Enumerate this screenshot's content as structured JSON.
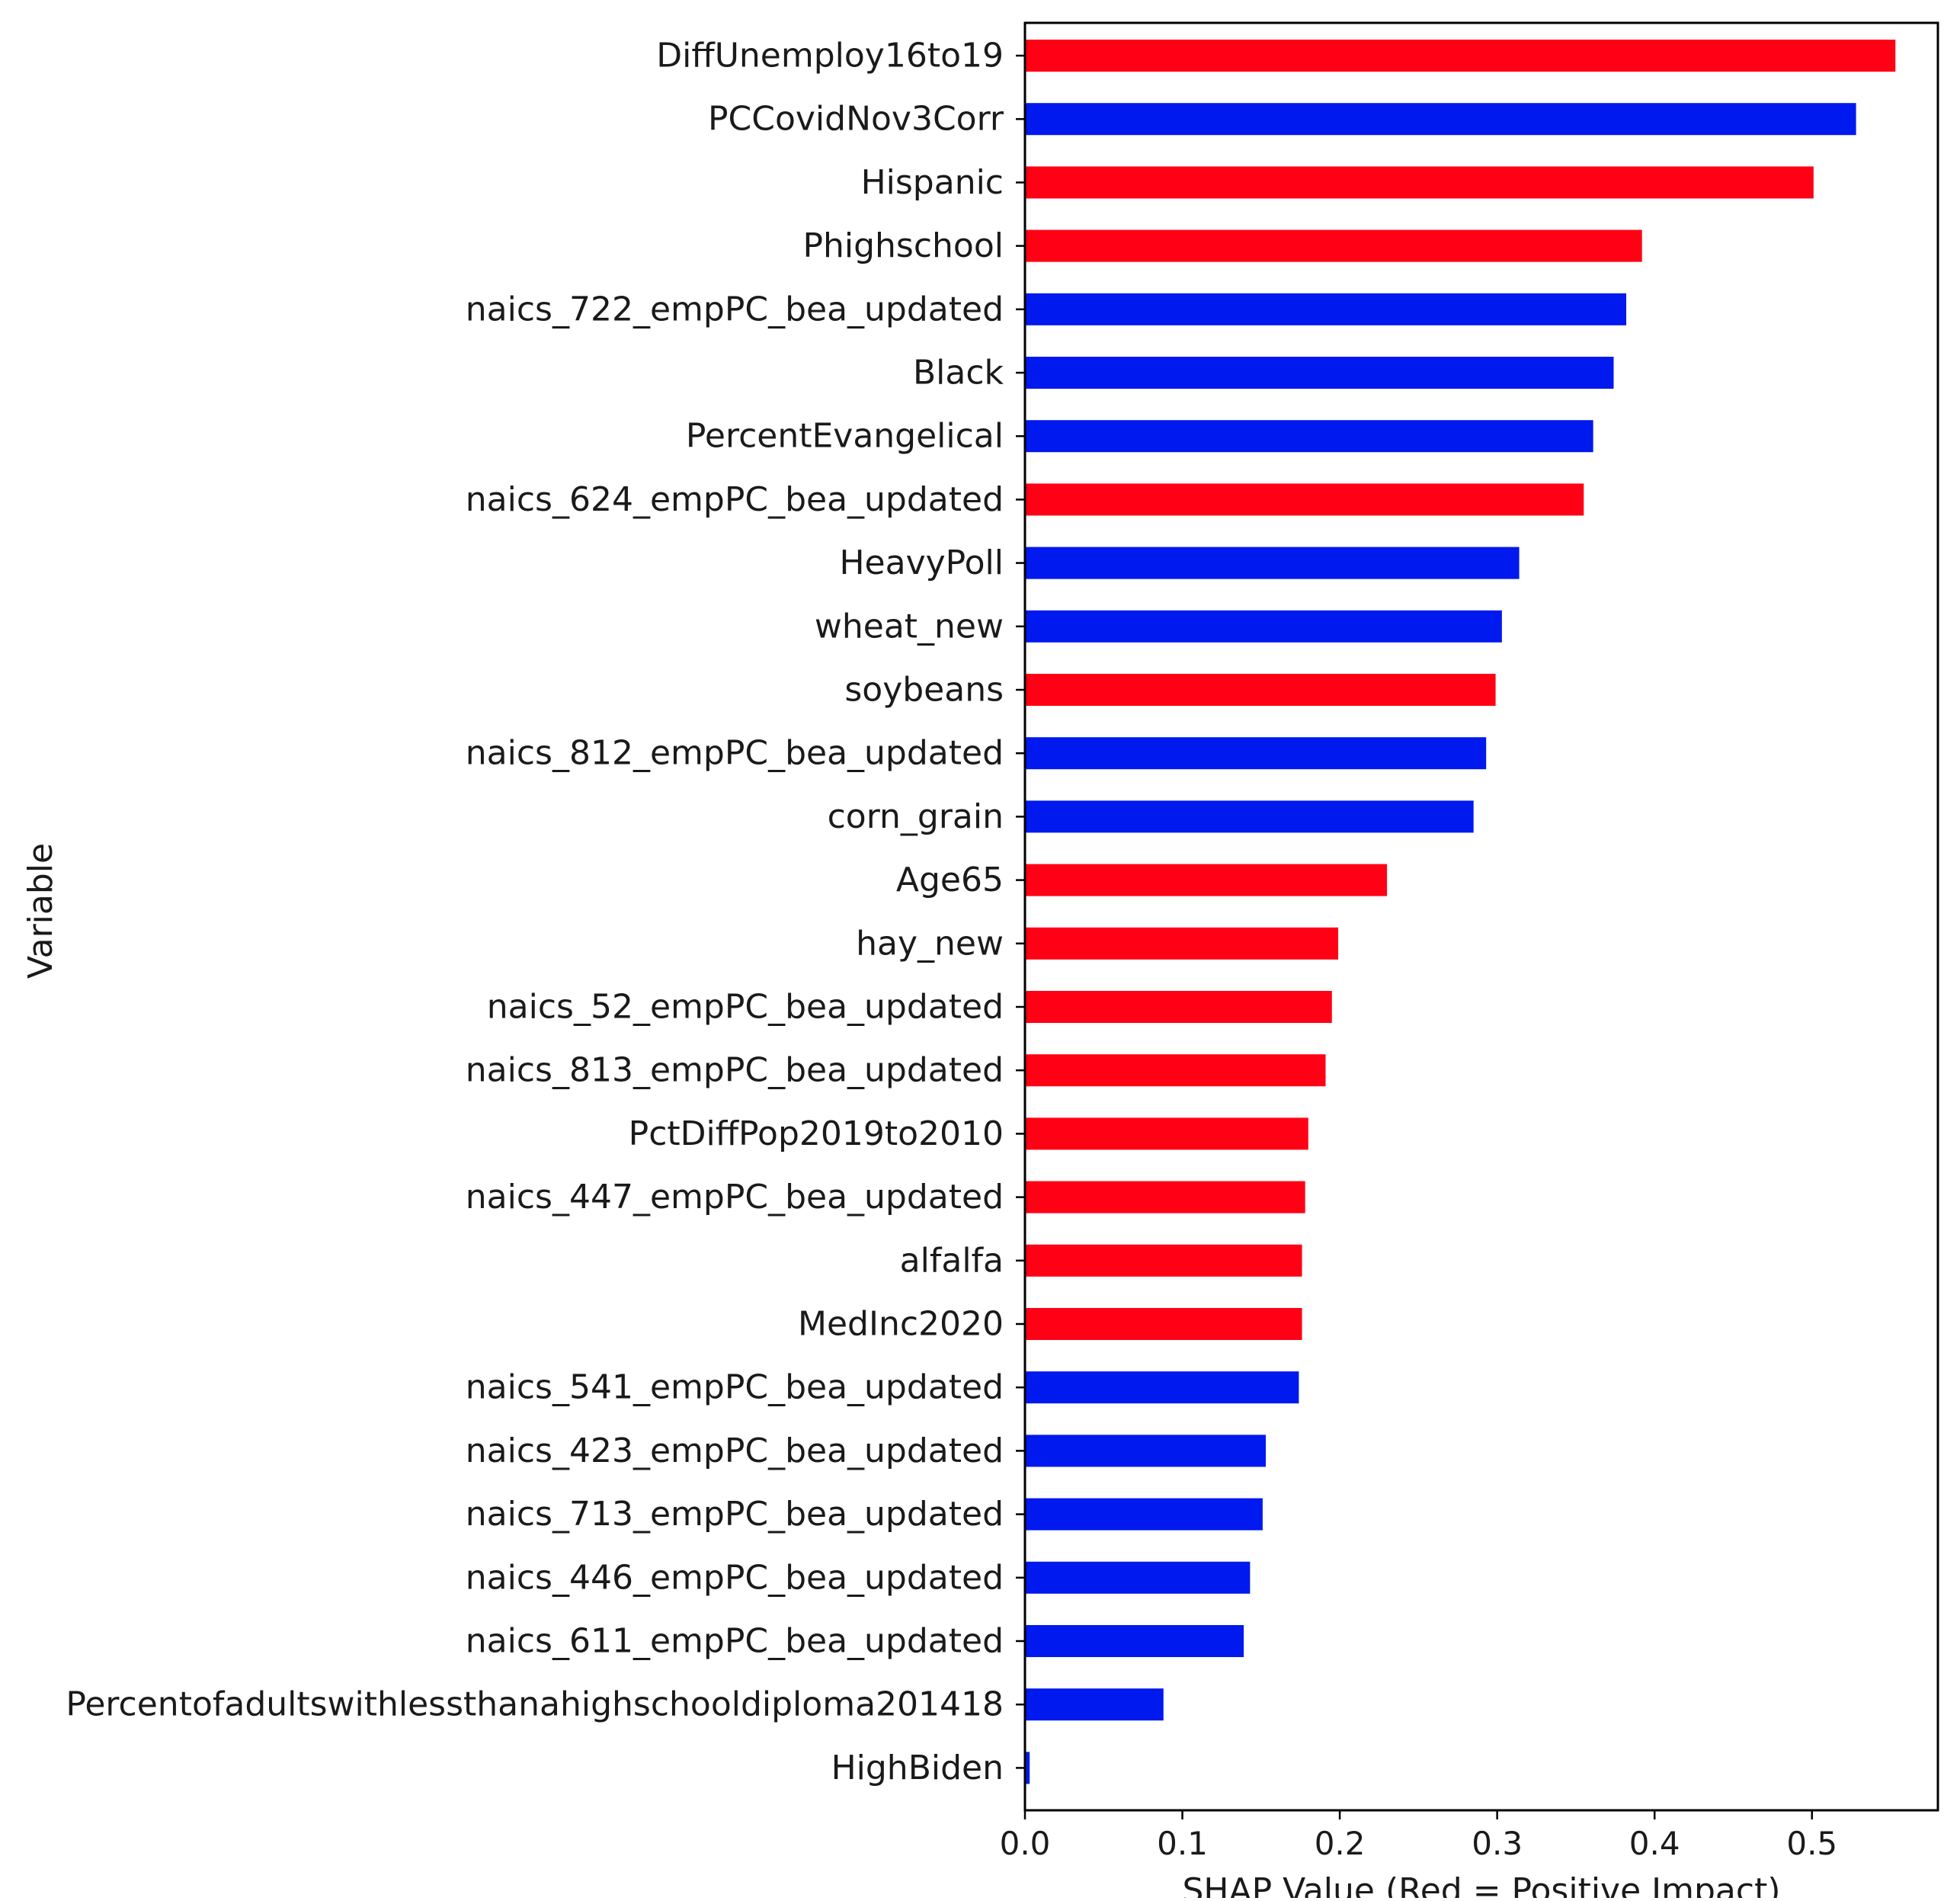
{
  "chart_data": {
    "type": "bar",
    "orientation": "horizontal",
    "xlabel": "SHAP Value (Red = Positive Impact)",
    "ylabel": "Variable",
    "xlim": [
      0,
      0.58
    ],
    "xticks": [
      "0.0",
      "0.1",
      "0.2",
      "0.3",
      "0.4",
      "0.5"
    ],
    "grid": false,
    "legend": "none",
    "colors": {
      "positive": "#ff0015",
      "negative": "#0019ee"
    },
    "bars": [
      {
        "label": "DiffUnemploy16to19",
        "value": 0.553,
        "sign": "positive"
      },
      {
        "label": "PCCovidNov3Corr",
        "value": 0.528,
        "sign": "negative"
      },
      {
        "label": "Hispanic",
        "value": 0.501,
        "sign": "positive"
      },
      {
        "label": "Phighschool",
        "value": 0.392,
        "sign": "positive"
      },
      {
        "label": "naics_722_empPC_bea_updated",
        "value": 0.382,
        "sign": "negative"
      },
      {
        "label": "Black",
        "value": 0.374,
        "sign": "negative"
      },
      {
        "label": "PercentEvangelical",
        "value": 0.361,
        "sign": "negative"
      },
      {
        "label": "naics_624_empPC_bea_updated",
        "value": 0.355,
        "sign": "positive"
      },
      {
        "label": "HeavyPoll",
        "value": 0.314,
        "sign": "negative"
      },
      {
        "label": "wheat_new",
        "value": 0.303,
        "sign": "negative"
      },
      {
        "label": "soybeans",
        "value": 0.299,
        "sign": "positive"
      },
      {
        "label": "naics_812_empPC_bea_updated",
        "value": 0.293,
        "sign": "negative"
      },
      {
        "label": "corn_grain",
        "value": 0.285,
        "sign": "negative"
      },
      {
        "label": "Age65",
        "value": 0.23,
        "sign": "positive"
      },
      {
        "label": "hay_new",
        "value": 0.199,
        "sign": "positive"
      },
      {
        "label": "naics_52_empPC_bea_updated",
        "value": 0.195,
        "sign": "positive"
      },
      {
        "label": "naics_813_empPC_bea_updated",
        "value": 0.191,
        "sign": "positive"
      },
      {
        "label": "PctDiffPop2019to2010",
        "value": 0.18,
        "sign": "positive"
      },
      {
        "label": "naics_447_empPC_bea_updated",
        "value": 0.178,
        "sign": "positive"
      },
      {
        "label": "alfalfa",
        "value": 0.176,
        "sign": "positive"
      },
      {
        "label": "MedInc2020",
        "value": 0.176,
        "sign": "positive"
      },
      {
        "label": "naics_541_empPC_bea_updated",
        "value": 0.174,
        "sign": "negative"
      },
      {
        "label": "naics_423_empPC_bea_updated",
        "value": 0.153,
        "sign": "negative"
      },
      {
        "label": "naics_713_empPC_bea_updated",
        "value": 0.151,
        "sign": "negative"
      },
      {
        "label": "naics_446_empPC_bea_updated",
        "value": 0.143,
        "sign": "negative"
      },
      {
        "label": "naics_611_empPC_bea_updated",
        "value": 0.139,
        "sign": "negative"
      },
      {
        "label": "Percentofadultswithlessthanahighschooldiploma201418",
        "value": 0.088,
        "sign": "negative"
      },
      {
        "label": "HighBiden",
        "value": 0.003,
        "sign": "negative"
      }
    ]
  }
}
